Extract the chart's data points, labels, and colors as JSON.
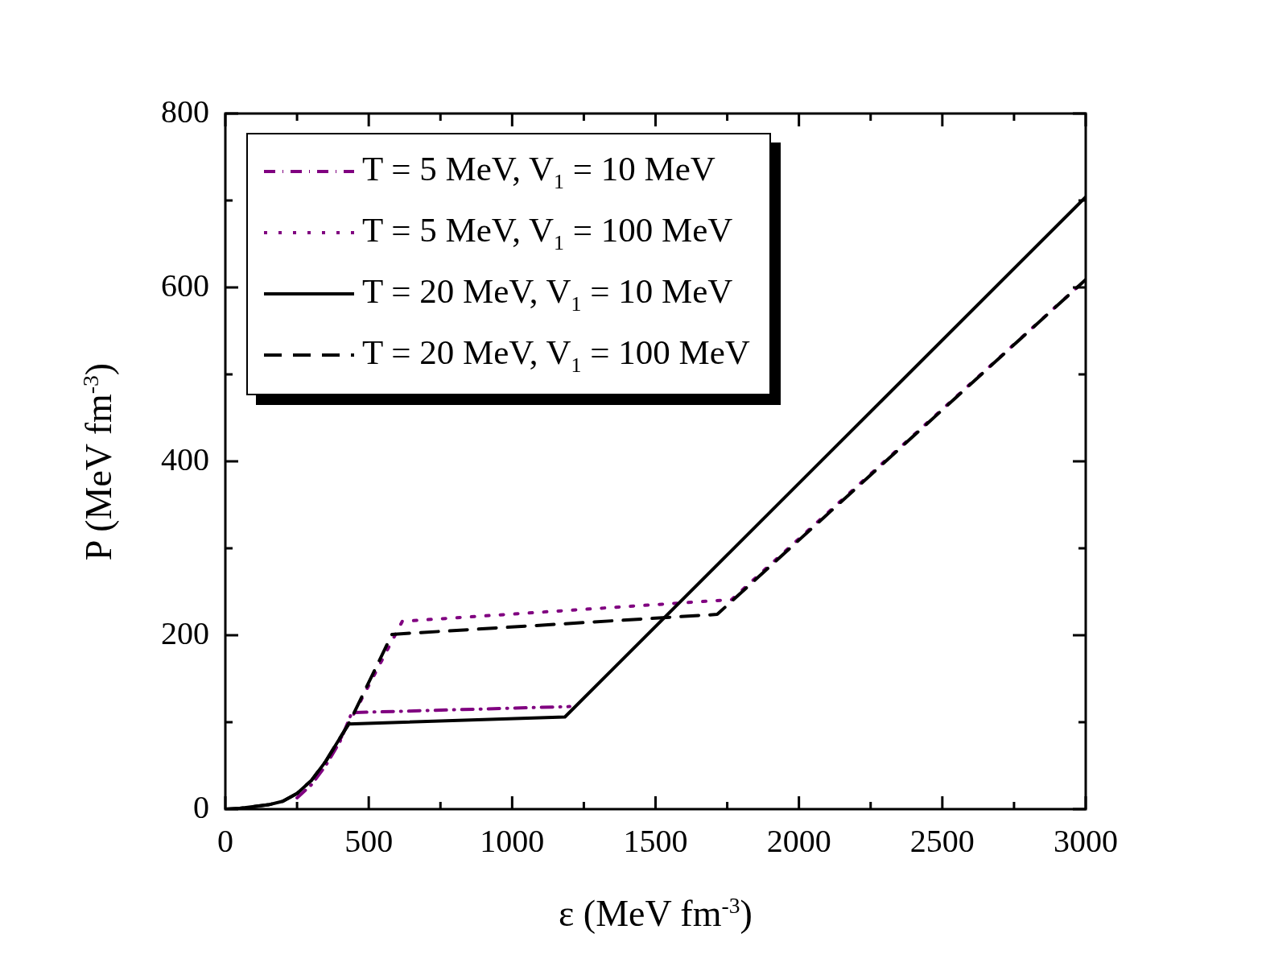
{
  "chart_data": {
    "type": "line",
    "xlabel": "ε (MeV fm$^{-3}$)",
    "ylabel": "P (MeV fm$^{-3}$)",
    "xlim": [
      0,
      3000
    ],
    "ylim": [
      0,
      800
    ],
    "xticks": [
      0,
      {
        "value": 250,
        "label": null
      },
      500,
      {
        "value": 750,
        "label": null
      },
      1000,
      {
        "value": 1250,
        "label": null
      },
      1500,
      {
        "value": 1750,
        "label": null
      },
      2000,
      {
        "value": 2250,
        "label": null
      },
      2500,
      {
        "value": 2750,
        "label": null
      },
      3000
    ],
    "yticks": [
      0,
      {
        "value": 100,
        "label": null
      },
      200,
      {
        "value": 300,
        "label": null
      },
      400,
      {
        "value": 500,
        "label": null
      },
      600,
      {
        "value": 700,
        "label": null
      },
      800
    ],
    "grid": false,
    "legend": "top left",
    "marker": "none",
    "series": [
      {
        "name": "T = 5 MeV, V$_{1}$ = 10 MeV",
        "color": "#800080",
        "line_style": "dashdot",
        "x": [
          250,
          300,
          350,
          400,
          441,
          1201
        ],
        "values": [
          13,
          28,
          50,
          78,
          111,
          118
        ]
      },
      {
        "name": "T = 5 MeV, V$_{1}$ = 100 MeV",
        "color": "#800080",
        "line_style": "dotted",
        "x": [
          400,
          430,
          617,
          1765,
          3000
        ],
        "values": [
          80,
          98,
          216,
          241,
          609
        ]
      },
      {
        "name": "T = 20 MeV, V$_{1}$ = 10 MeV",
        "color": "#000000",
        "line_style": "solid",
        "x": [
          0,
          50,
          100,
          150,
          200,
          250,
          300,
          350,
          400,
          430,
          1184,
          3000
        ],
        "values": [
          0,
          1,
          3,
          5,
          9,
          18,
          33,
          55,
          82,
          98,
          106,
          704
        ]
      },
      {
        "name": "T = 20 MeV, V$_{1}$ = 100 MeV",
        "color": "#000000",
        "line_style": "dashed",
        "x": [
          0,
          50,
          100,
          150,
          200,
          250,
          300,
          350,
          400,
          430,
          581,
          1715,
          3000
        ],
        "values": [
          0,
          1,
          3,
          5,
          9,
          18,
          33,
          55,
          82,
          98,
          201,
          224,
          609
        ]
      }
    ]
  }
}
